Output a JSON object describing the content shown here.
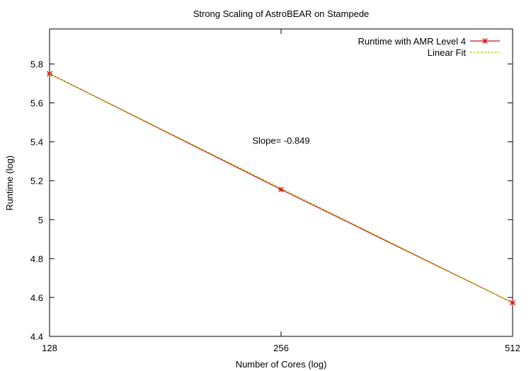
{
  "chart_data": {
    "type": "line",
    "title": "Strong Scaling of AstroBEAR on Stampede",
    "xlabel": "Number of Cores (log)",
    "ylabel": "Runtime (log)",
    "x_scale": "log2",
    "x_ticks": [
      128,
      256,
      512
    ],
    "x_tick_labels": [
      "128",
      "256",
      "512"
    ],
    "xlim": [
      128,
      512
    ],
    "ylim": [
      4.4,
      5.98
    ],
    "y_ticks": [
      4.4,
      4.6,
      4.8,
      5.0,
      5.2,
      5.4,
      5.6,
      5.8
    ],
    "y_tick_labels": [
      "4.4",
      "4.6",
      "4.8",
      "5",
      "5.2",
      "5.4",
      "5.6",
      "5.8"
    ],
    "grid": false,
    "legend_position": "top-right",
    "series": [
      {
        "name": "Runtime with AMR Level 4",
        "color": "#cc1111",
        "style": "solid",
        "marker": "star",
        "x": [
          128,
          256,
          512
        ],
        "y": [
          5.75,
          5.155,
          4.573
        ]
      },
      {
        "name": "Linear Fit",
        "color": "#99cc00",
        "style": "dashed",
        "marker": "none",
        "x": [
          128,
          512
        ],
        "y": [
          5.75,
          4.573
        ]
      }
    ],
    "annotations": [
      {
        "text": "Slope= -0.849",
        "x": 256,
        "y": 5.39
      }
    ]
  }
}
